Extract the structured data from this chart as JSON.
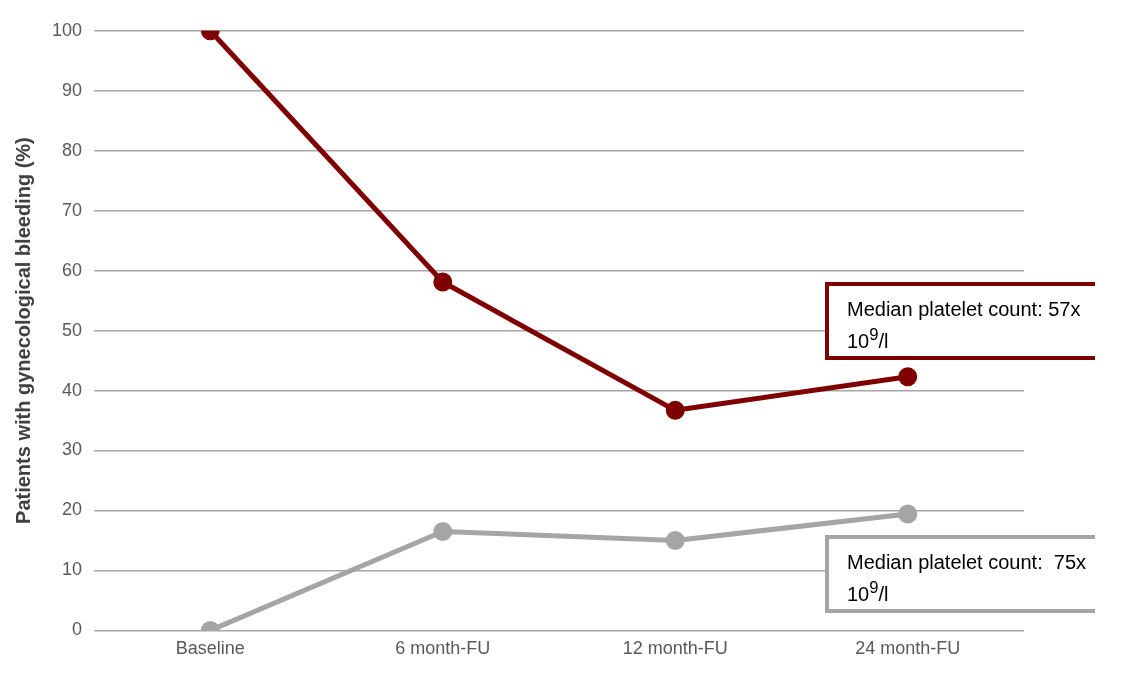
{
  "chart_data": {
    "type": "line",
    "ylabel": "Patients with gynecological bleeding (%)",
    "categories": [
      "Baseline",
      "6 month-FU",
      "12 month-FU",
      "24 month-FU"
    ],
    "series": [
      {
        "color": "#7f0000",
        "values": [
          100,
          58.1,
          36.7,
          42.3
        ]
      },
      {
        "color": "#a5a5a5",
        "values": [
          0,
          16.5,
          15,
          19.4
        ]
      }
    ],
    "ylim": [
      0,
      100
    ],
    "yticks": [
      0,
      10,
      20,
      30,
      40,
      50,
      60,
      70,
      80,
      90,
      100
    ],
    "grid": "y",
    "marker": "circle",
    "line_style": "solid",
    "annotations": [
      "Median platelet count: 57x 10$^{9}$/l",
      "Median platelet count:  75x 10$^{9}$/l"
    ]
  }
}
